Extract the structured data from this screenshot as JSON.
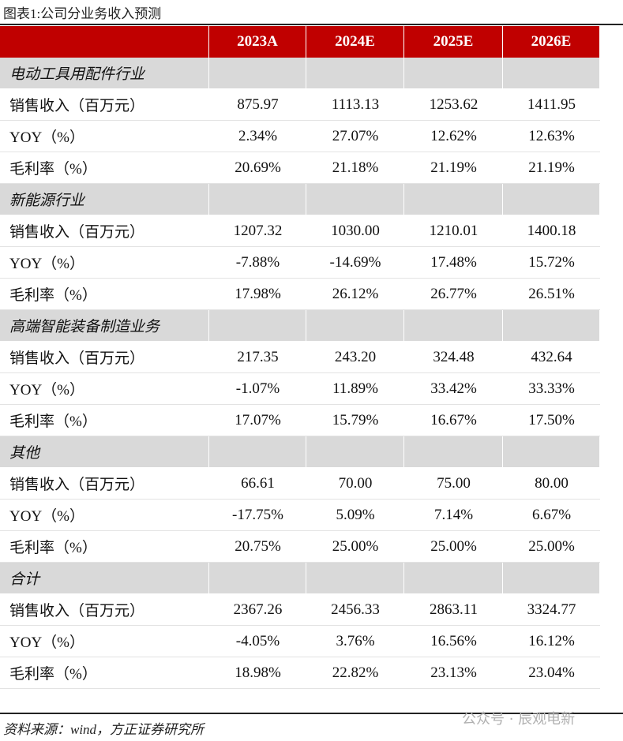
{
  "title": "图表1:公司分业务收入预测",
  "columns": [
    "2023A",
    "2024E",
    "2025E",
    "2026E"
  ],
  "sections": [
    {
      "name": "电动工具用配件行业",
      "rows": [
        {
          "label": "销售收入（百万元）",
          "values": [
            "875.97",
            "1113.13",
            "1253.62",
            "1411.95"
          ]
        },
        {
          "label": "YOY（%）",
          "values": [
            "2.34%",
            "27.07%",
            "12.62%",
            "12.63%"
          ]
        },
        {
          "label": "毛利率（%）",
          "values": [
            "20.69%",
            "21.18%",
            "21.19%",
            "21.19%"
          ]
        }
      ]
    },
    {
      "name": "新能源行业",
      "rows": [
        {
          "label": "销售收入（百万元）",
          "values": [
            "1207.32",
            "1030.00",
            "1210.01",
            "1400.18"
          ]
        },
        {
          "label": "YOY（%）",
          "values": [
            "-7.88%",
            "-14.69%",
            "17.48%",
            "15.72%"
          ]
        },
        {
          "label": "毛利率（%）",
          "values": [
            "17.98%",
            "26.12%",
            "26.77%",
            "26.51%"
          ]
        }
      ]
    },
    {
      "name": "高端智能装备制造业务",
      "rows": [
        {
          "label": "销售收入（百万元）",
          "values": [
            "217.35",
            "243.20",
            "324.48",
            "432.64"
          ]
        },
        {
          "label": "YOY（%）",
          "values": [
            "-1.07%",
            "11.89%",
            "33.42%",
            "33.33%"
          ]
        },
        {
          "label": "毛利率（%）",
          "values": [
            "17.07%",
            "15.79%",
            "16.67%",
            "17.50%"
          ]
        }
      ]
    },
    {
      "name": "其他",
      "rows": [
        {
          "label": "销售收入（百万元）",
          "values": [
            "66.61",
            "70.00",
            "75.00",
            "80.00"
          ]
        },
        {
          "label": "YOY（%）",
          "values": [
            "-17.75%",
            "5.09%",
            "7.14%",
            "6.67%"
          ]
        },
        {
          "label": "毛利率（%）",
          "values": [
            "20.75%",
            "25.00%",
            "25.00%",
            "25.00%"
          ]
        }
      ]
    },
    {
      "name": "合计",
      "rows": [
        {
          "label": "销售收入（百万元）",
          "values": [
            "2367.26",
            "2456.33",
            "2863.11",
            "3324.77"
          ]
        },
        {
          "label": "YOY（%）",
          "values": [
            "-4.05%",
            "3.76%",
            "16.56%",
            "16.12%"
          ]
        },
        {
          "label": "毛利率（%）",
          "values": [
            "18.98%",
            "22.82%",
            "23.13%",
            "23.04%"
          ]
        }
      ]
    }
  ],
  "source": "资料来源：wind，方正证券研究所",
  "watermark": "公众号 · 辰观电新"
}
